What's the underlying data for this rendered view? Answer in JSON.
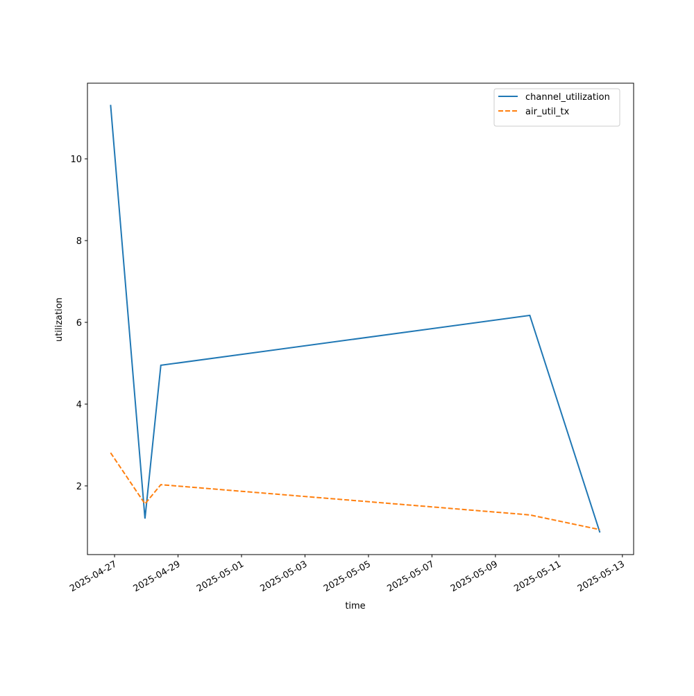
{
  "chart_data": {
    "type": "line",
    "x_label": "time",
    "y_label": "utilization",
    "x": [
      "2025-04-26T21:00",
      "2025-04-27T23:00",
      "2025-04-28T11:00",
      "2025-05-10T02:00",
      "2025-05-12T07:00"
    ],
    "series": [
      {
        "name": "channel_utilization",
        "color": "#1f77b4",
        "dash": "solid",
        "values": [
          11.32,
          1.2,
          4.95,
          6.17,
          0.86
        ]
      },
      {
        "name": "air_util_tx",
        "color": "#ff7f0e",
        "dash": "dashed",
        "values": [
          2.81,
          1.56,
          2.03,
          1.29,
          0.93
        ]
      }
    ],
    "xlim": [
      "2025-04-26T03:30",
      "2025-05-13T08:30"
    ],
    "xticks": [
      "2025-04-27",
      "2025-04-29",
      "2025-05-01",
      "2025-05-03",
      "2025-05-05",
      "2025-05-07",
      "2025-05-09",
      "2025-05-11",
      "2025-05-13"
    ],
    "ylim": [
      0.32,
      11.85
    ],
    "yticks": [
      2,
      4,
      6,
      8,
      10
    ],
    "grid": false,
    "legend": "upper right"
  }
}
